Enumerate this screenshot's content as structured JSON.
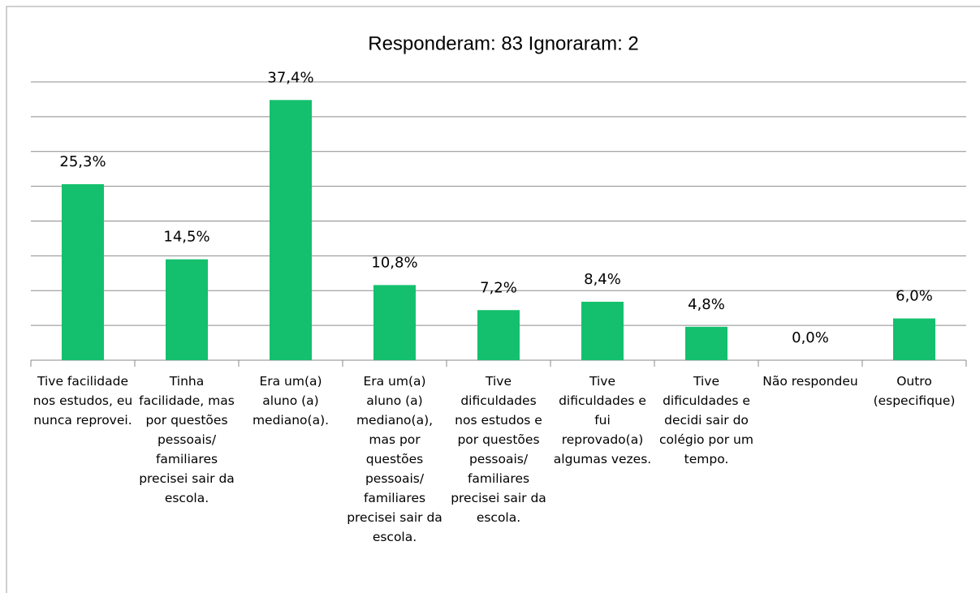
{
  "chart_data": {
    "type": "bar",
    "title": "Responderam: 83   Ignoraram: 2",
    "categories": [
      "Tive facilidade nos estudos, eu nunca reprovei.",
      "Tinha facilidade, mas por questões pessoais/ familiares precisei sair da escola.",
      "Era um(a) aluno (a) mediano(a).",
      "Era um(a) aluno (a) mediano(a), mas por questões pessoais/ familiares precisei sair da escola.",
      "Tive dificuldades nos estudos e por questões pessoais/ familiares precisei sair da escola.",
      "Tive dificuldades e fui reprovado(a) algumas vezes.",
      "Tive dificuldades e decidi sair do colégio por um tempo.",
      "Não respondeu",
      "Outro (especifique)"
    ],
    "values": [
      25.3,
      14.5,
      37.4,
      10.8,
      7.2,
      8.4,
      4.8,
      0.0,
      6.0
    ],
    "value_labels": [
      "25,3%",
      "14,5%",
      "37,4%",
      "10,8%",
      "7,2%",
      "8,4%",
      "4,8%",
      "0,0%",
      "6,0%"
    ],
    "color": "#14c06d",
    "ylim": [
      0,
      40
    ],
    "yticks": [
      0,
      5,
      10,
      15,
      20,
      25,
      30,
      35,
      40
    ],
    "grid": true
  }
}
